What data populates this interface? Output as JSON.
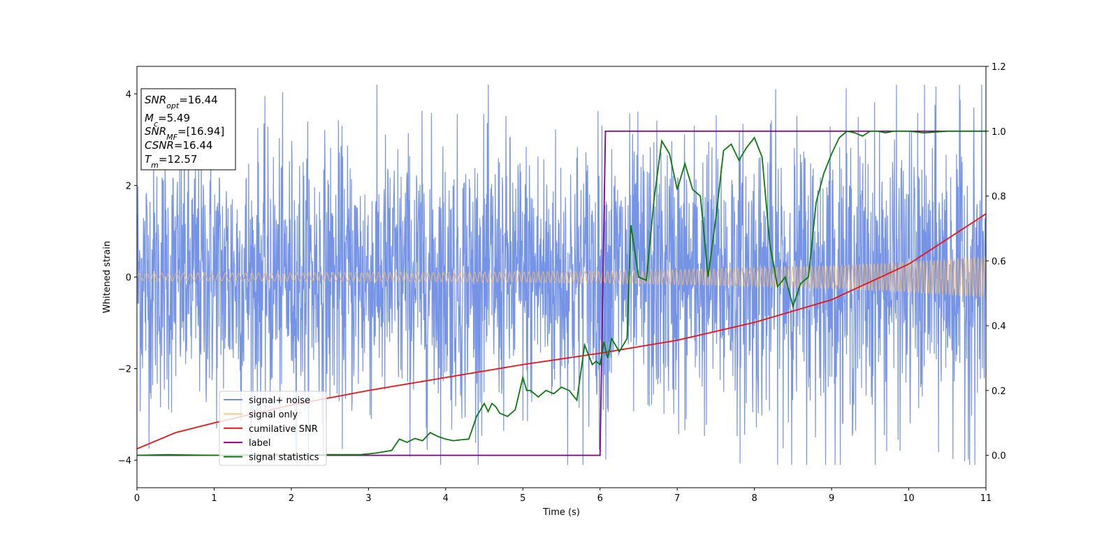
{
  "chart_data": {
    "type": "line",
    "xlabel": "Time (s)",
    "ylabel_left": "Whitened strain",
    "ylabel_right": "",
    "xlim": [
      0,
      11
    ],
    "ylim_left": [
      -4.6,
      4.6
    ],
    "ylim_right": [
      -0.1,
      1.2
    ],
    "x_ticks": [
      "0",
      "1",
      "2",
      "3",
      "4",
      "5",
      "6",
      "7",
      "8",
      "9",
      "10",
      "11"
    ],
    "y_left_ticks": [
      "−4",
      "−2",
      "0",
      "2",
      "4"
    ],
    "y_right_ticks": [
      "0.0",
      "0.2",
      "0.4",
      "0.6",
      "0.8",
      "1.0",
      "1.2"
    ],
    "info_box": {
      "snr_opt": {
        "main": "SNR",
        "sub": "opt",
        "value": "=16.44"
      },
      "mc": {
        "main": "M",
        "sub": "c",
        "value": "=5.49"
      },
      "snr_mf": {
        "main": "SNR",
        "sub": "MF",
        "value": "=[16.94]"
      },
      "csnr": {
        "main": "CSNR",
        "value": "=16.44"
      },
      "tm": {
        "main": "T",
        "sub": "m",
        "value": "=12.57"
      }
    },
    "legend": {
      "placement": "lower-left",
      "entries": [
        {
          "label": "signal+ noise",
          "color": "#6f8ee6"
        },
        {
          "label": "signal only",
          "color": "#f4c98a"
        },
        {
          "label": "cumilative SNR",
          "color": "#ee1111"
        },
        {
          "label": "label",
          "color": "#800080"
        },
        {
          "label": "signal statistics",
          "color": "#0a7a0a"
        }
      ]
    },
    "series": [
      {
        "name": "signal+ noise",
        "axis": "left",
        "color": "#6f8ee6",
        "amplitude_envelope": [
          [
            0,
            1.5
          ],
          [
            6,
            1.6
          ],
          [
            11,
            1.7
          ]
        ],
        "peak_range": [
          -4.1,
          4.2
        ]
      },
      {
        "name": "signal only",
        "axis": "left",
        "color": "#e9b77a",
        "amplitude_envelope": [
          [
            0,
            0.08
          ],
          [
            4,
            0.1
          ],
          [
            6,
            0.13
          ],
          [
            8,
            0.2
          ],
          [
            9,
            0.25
          ],
          [
            10,
            0.33
          ],
          [
            11,
            0.45
          ]
        ]
      },
      {
        "name": "cumilative SNR",
        "axis": "right",
        "color": "#ee1111",
        "x": [
          0,
          0.5,
          1,
          2,
          3,
          4,
          5,
          6,
          7,
          8,
          9,
          10,
          11
        ],
        "y": [
          0.02,
          0.07,
          0.1,
          0.155,
          0.2,
          0.24,
          0.28,
          0.315,
          0.355,
          0.41,
          0.48,
          0.59,
          0.745
        ]
      },
      {
        "name": "label",
        "axis": "right",
        "color": "#800080",
        "x": [
          0,
          6.0,
          6.07,
          11
        ],
        "y": [
          0,
          0,
          1,
          1
        ]
      },
      {
        "name": "signal statistics",
        "axis": "right",
        "color": "#0a7a0a",
        "x": [
          0,
          0.4,
          1,
          2,
          2.9,
          3.1,
          3.3,
          3.4,
          3.5,
          3.6,
          3.7,
          3.8,
          3.9,
          4.0,
          4.1,
          4.2,
          4.3,
          4.4,
          4.5,
          4.55,
          4.6,
          4.65,
          4.7,
          4.8,
          4.9,
          5.0,
          5.05,
          5.1,
          5.2,
          5.3,
          5.4,
          5.5,
          5.6,
          5.7,
          5.8,
          5.85,
          5.9,
          5.95,
          6.0,
          6.05,
          6.1,
          6.15,
          6.25,
          6.35,
          6.4,
          6.5,
          6.6,
          6.7,
          6.8,
          6.9,
          7.0,
          7.1,
          7.2,
          7.3,
          7.4,
          7.5,
          7.6,
          7.7,
          7.8,
          7.9,
          8.0,
          8.1,
          8.2,
          8.3,
          8.4,
          8.5,
          8.6,
          8.7,
          8.8,
          8.9,
          9.0,
          9.1,
          9.2,
          9.3,
          9.4,
          9.5,
          9.6,
          9.7,
          9.8,
          9.9,
          10.0,
          10.2,
          10.5,
          11
        ],
        "y": [
          0,
          0.002,
          0,
          0.002,
          0.002,
          0.007,
          0.015,
          0.05,
          0.04,
          0.052,
          0.045,
          0.07,
          0.058,
          0.05,
          0.045,
          0.048,
          0.05,
          0.12,
          0.16,
          0.135,
          0.16,
          0.15,
          0.13,
          0.12,
          0.14,
          0.24,
          0.2,
          0.2,
          0.18,
          0.2,
          0.19,
          0.21,
          0.2,
          0.17,
          0.34,
          0.31,
          0.28,
          0.29,
          0.28,
          0.35,
          0.3,
          0.36,
          0.32,
          0.36,
          0.71,
          0.55,
          0.54,
          0.79,
          0.97,
          0.93,
          0.82,
          0.9,
          0.82,
          0.8,
          0.55,
          0.73,
          0.94,
          0.96,
          0.91,
          0.95,
          0.98,
          0.92,
          0.65,
          0.52,
          0.55,
          0.46,
          0.53,
          0.55,
          0.78,
          0.87,
          0.93,
          0.98,
          1.0,
          0.995,
          0.985,
          1.0,
          1.0,
          0.995,
          1.0,
          1.0,
          1.0,
          0.995,
          1.0,
          1.0
        ]
      }
    ]
  }
}
